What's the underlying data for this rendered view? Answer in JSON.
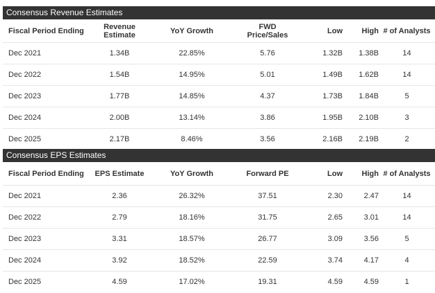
{
  "revenue": {
    "title": "Consensus Revenue Estimates",
    "headers": {
      "period": "Fiscal Period Ending",
      "estimate_line1": "Revenue",
      "estimate_line2": "Estimate",
      "growth": "YoY Growth",
      "ratio_line1": "FWD",
      "ratio_line2": "Price/Sales",
      "low": "Low",
      "high": "High",
      "analysts": "# of Analysts"
    },
    "rows": [
      {
        "period": "Dec 2021",
        "estimate": "1.34B",
        "growth": "22.85%",
        "ratio": "5.76",
        "low": "1.32B",
        "high": "1.38B",
        "analysts": "14"
      },
      {
        "period": "Dec 2022",
        "estimate": "1.54B",
        "growth": "14.95%",
        "ratio": "5.01",
        "low": "1.49B",
        "high": "1.62B",
        "analysts": "14"
      },
      {
        "period": "Dec 2023",
        "estimate": "1.77B",
        "growth": "14.85%",
        "ratio": "4.37",
        "low": "1.73B",
        "high": "1.84B",
        "analysts": "5"
      },
      {
        "period": "Dec 2024",
        "estimate": "2.00B",
        "growth": "13.14%",
        "ratio": "3.86",
        "low": "1.95B",
        "high": "2.10B",
        "analysts": "3"
      },
      {
        "period": "Dec 2025",
        "estimate": "2.17B",
        "growth": "8.46%",
        "ratio": "3.56",
        "low": "2.16B",
        "high": "2.19B",
        "analysts": "2"
      }
    ]
  },
  "eps": {
    "title": "Consensus EPS Estimates",
    "headers": {
      "period": "Fiscal Period Ending",
      "estimate": "EPS Estimate",
      "growth": "YoY Growth",
      "ratio": "Forward PE",
      "low": "Low",
      "high": "High",
      "analysts": "# of Analysts"
    },
    "rows": [
      {
        "period": "Dec 2021",
        "estimate": "2.36",
        "growth": "26.32%",
        "ratio": "37.51",
        "low": "2.30",
        "high": "2.47",
        "analysts": "14"
      },
      {
        "period": "Dec 2022",
        "estimate": "2.79",
        "growth": "18.16%",
        "ratio": "31.75",
        "low": "2.65",
        "high": "3.01",
        "analysts": "14"
      },
      {
        "period": "Dec 2023",
        "estimate": "3.31",
        "growth": "18.57%",
        "ratio": "26.77",
        "low": "3.09",
        "high": "3.56",
        "analysts": "5"
      },
      {
        "period": "Dec 2024",
        "estimate": "3.92",
        "growth": "18.52%",
        "ratio": "22.59",
        "low": "3.74",
        "high": "4.17",
        "analysts": "4"
      },
      {
        "period": "Dec 2025",
        "estimate": "4.59",
        "growth": "17.02%",
        "ratio": "19.31",
        "low": "4.59",
        "high": "4.59",
        "analysts": "1"
      }
    ]
  }
}
